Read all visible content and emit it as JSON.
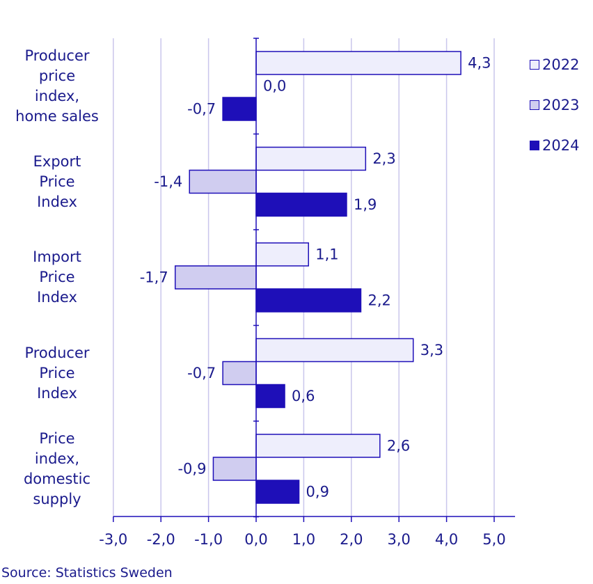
{
  "chart_data": {
    "type": "bar",
    "orientation": "horizontal",
    "categories": [
      [
        "Producer",
        "price",
        "index,",
        "home sales"
      ],
      [
        "Export",
        "Price",
        "Index"
      ],
      [
        "Import",
        "Price",
        "Index"
      ],
      [
        "Producer",
        "Price",
        "Index"
      ],
      [
        "Price",
        "index,",
        "domestic",
        "supply"
      ]
    ],
    "series": [
      {
        "name": "2022",
        "color": "#eeeefc",
        "values": [
          4.3,
          2.3,
          1.1,
          3.3,
          2.6
        ],
        "labels": [
          "4,3",
          "2,3",
          "1,1",
          "3,3",
          "2,6"
        ]
      },
      {
        "name": "2023",
        "color": "#d0cdf0",
        "values": [
          0.0,
          -1.4,
          -1.7,
          -0.7,
          -0.9
        ],
        "labels": [
          "0,0",
          "-1,4",
          "-1,7",
          "-0,7",
          "-0,9"
        ]
      },
      {
        "name": "2024",
        "color": "#1e0fb8",
        "values": [
          -0.7,
          1.9,
          2.2,
          0.6,
          0.9
        ],
        "labels": [
          "-0,7",
          "1,9",
          "2,2",
          "0,6",
          "0,9"
        ]
      }
    ],
    "xlim": [
      -3.0,
      5.0
    ],
    "xticks": [
      -3,
      -2,
      -1,
      0,
      1,
      2,
      3,
      4,
      5
    ],
    "xtick_labels": [
      "-3,0",
      "-2,0",
      "-1,0",
      "0,0",
      "1,0",
      "2,0",
      "3,0",
      "4,0",
      "5,0"
    ],
    "grid": "vertical",
    "legend_position": "top-right",
    "colors": {
      "text": "#1a1a8c",
      "bar_border": "#1e0fb8",
      "grid": "#c9c6ec",
      "axis": "#1e0fb8"
    }
  },
  "source": "Source: Statistics Sweden"
}
